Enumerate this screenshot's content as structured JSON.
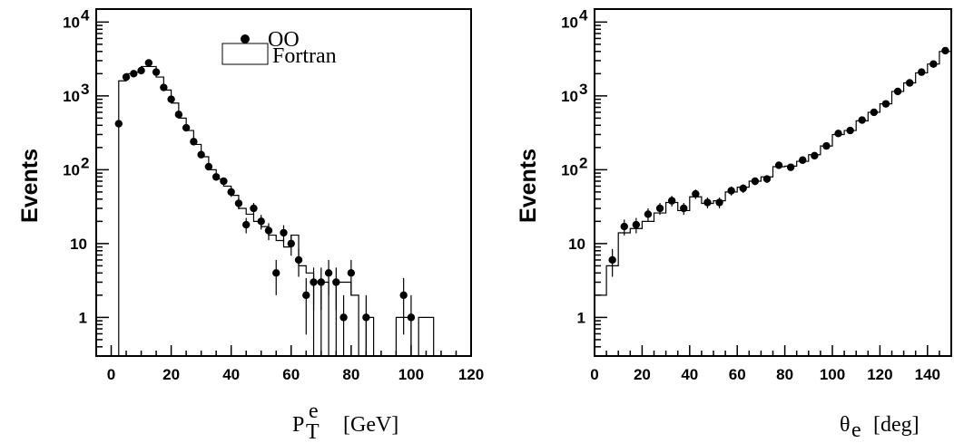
{
  "chart_data": [
    {
      "type": "scatter",
      "ylabel": "Events",
      "xlabel_main": "P",
      "xlabel_sup": "e",
      "xlabel_sub": "T",
      "xlabel_unit": "[GeV]",
      "x_range": [
        -5,
        120
      ],
      "y_range": [
        0.3,
        15000
      ],
      "y_scale": "log",
      "x_ticks": [
        0,
        20,
        40,
        60,
        80,
        100,
        120
      ],
      "y_ticks": [
        {
          "value": 1,
          "label": "1"
        },
        {
          "value": 10,
          "label": "10"
        },
        {
          "value": 100,
          "label": "10",
          "sup": "2"
        },
        {
          "value": 1000,
          "label": "10",
          "sup": "3"
        },
        {
          "value": 10000,
          "label": "10",
          "sup": "4"
        }
      ],
      "legend": {
        "position": "top-center",
        "points_label": "OO",
        "hist_label": "Fortran"
      },
      "series": [
        {
          "name": "OO",
          "kind": "points",
          "points": [
            {
              "x": 2.5,
              "y": 420
            },
            {
              "x": 5,
              "y": 1800
            },
            {
              "x": 7.5,
              "y": 2000
            },
            {
              "x": 10,
              "y": 2200
            },
            {
              "x": 12.5,
              "y": 2800
            },
            {
              "x": 15,
              "y": 2100
            },
            {
              "x": 17.5,
              "y": 1300
            },
            {
              "x": 20,
              "y": 900
            },
            {
              "x": 22.5,
              "y": 560
            },
            {
              "x": 25,
              "y": 370
            },
            {
              "x": 27.5,
              "y": 240
            },
            {
              "x": 30,
              "y": 160
            },
            {
              "x": 32.5,
              "y": 110
            },
            {
              "x": 35,
              "y": 80
            },
            {
              "x": 37.5,
              "y": 70
            },
            {
              "x": 40,
              "y": 50
            },
            {
              "x": 42.5,
              "y": 35
            },
            {
              "x": 45,
              "y": 18
            },
            {
              "x": 47.5,
              "y": 30
            },
            {
              "x": 50,
              "y": 20
            },
            {
              "x": 52.5,
              "y": 15
            },
            {
              "x": 55,
              "y": 4
            },
            {
              "x": 57.5,
              "y": 14
            },
            {
              "x": 60,
              "y": 10
            },
            {
              "x": 62.5,
              "y": 6
            },
            {
              "x": 65,
              "y": 2
            },
            {
              "x": 67.5,
              "y": 3
            },
            {
              "x": 70,
              "y": 3
            },
            {
              "x": 72.5,
              "y": 4
            },
            {
              "x": 75,
              "y": 3
            },
            {
              "x": 77.5,
              "y": 1
            },
            {
              "x": 80,
              "y": 4
            },
            {
              "x": 85,
              "y": 1
            },
            {
              "x": 97.5,
              "y": 2
            },
            {
              "x": 100,
              "y": 1
            }
          ]
        },
        {
          "name": "Fortran",
          "kind": "histogram",
          "bin_width": 2.5,
          "bins": [
            {
              "lo": 2.5,
              "y": 1600
            },
            {
              "lo": 5,
              "y": 2000
            },
            {
              "lo": 7.5,
              "y": 2100
            },
            {
              "lo": 10,
              "y": 2500
            },
            {
              "lo": 12.5,
              "y": 2500
            },
            {
              "lo": 15,
              "y": 1800
            },
            {
              "lo": 17.5,
              "y": 1200
            },
            {
              "lo": 20,
              "y": 800
            },
            {
              "lo": 22.5,
              "y": 500
            },
            {
              "lo": 25,
              "y": 340
            },
            {
              "lo": 27.5,
              "y": 220
            },
            {
              "lo": 30,
              "y": 150
            },
            {
              "lo": 32.5,
              "y": 100
            },
            {
              "lo": 35,
              "y": 75
            },
            {
              "lo": 37.5,
              "y": 60
            },
            {
              "lo": 40,
              "y": 45
            },
            {
              "lo": 42.5,
              "y": 30
            },
            {
              "lo": 45,
              "y": 25
            },
            {
              "lo": 47.5,
              "y": 20
            },
            {
              "lo": 50,
              "y": 17
            },
            {
              "lo": 52.5,
              "y": 13
            },
            {
              "lo": 55,
              "y": 11
            },
            {
              "lo": 57.5,
              "y": 9
            },
            {
              "lo": 60,
              "y": 13
            },
            {
              "lo": 62.5,
              "y": 5
            },
            {
              "lo": 65,
              "y": 4
            },
            {
              "lo": 67.5,
              "y": 0.3
            },
            {
              "lo": 70,
              "y": 3
            },
            {
              "lo": 72.5,
              "y": 0.3
            },
            {
              "lo": 75,
              "y": 3
            },
            {
              "lo": 77.5,
              "y": 3
            },
            {
              "lo": 80,
              "y": 2
            },
            {
              "lo": 82.5,
              "y": 0.3
            },
            {
              "lo": 85,
              "y": 1
            },
            {
              "lo": 87.5,
              "y": 0.3
            },
            {
              "lo": 95,
              "y": 1
            },
            {
              "lo": 97.5,
              "y": 1
            },
            {
              "lo": 100,
              "y": 0.3
            },
            {
              "lo": 102.5,
              "y": 1
            },
            {
              "lo": 105,
              "y": 1
            }
          ]
        }
      ]
    },
    {
      "type": "scatter",
      "ylabel": "Events",
      "xlabel_main": "θ",
      "xlabel_sub": "e",
      "xlabel_unit": "[deg]",
      "x_range": [
        0,
        150
      ],
      "y_range": [
        0.3,
        15000
      ],
      "y_scale": "log",
      "x_ticks": [
        0,
        20,
        40,
        60,
        80,
        100,
        120,
        140
      ],
      "y_ticks": [
        {
          "value": 1,
          "label": "1"
        },
        {
          "value": 10,
          "label": "10"
        },
        {
          "value": 100,
          "label": "10",
          "sup": "2"
        },
        {
          "value": 1000,
          "label": "10",
          "sup": "3"
        },
        {
          "value": 10000,
          "label": "10",
          "sup": "4"
        }
      ],
      "series": [
        {
          "name": "OO",
          "kind": "points",
          "points": [
            {
              "x": 7.5,
              "y": 6
            },
            {
              "x": 12.5,
              "y": 17
            },
            {
              "x": 17.5,
              "y": 18
            },
            {
              "x": 22.5,
              "y": 25
            },
            {
              "x": 27.5,
              "y": 30
            },
            {
              "x": 32.5,
              "y": 38
            },
            {
              "x": 37.5,
              "y": 30
            },
            {
              "x": 42.5,
              "y": 47
            },
            {
              "x": 47.5,
              "y": 36
            },
            {
              "x": 52.5,
              "y": 36
            },
            {
              "x": 57.5,
              "y": 52
            },
            {
              "x": 62.5,
              "y": 56
            },
            {
              "x": 67.5,
              "y": 70
            },
            {
              "x": 72.5,
              "y": 75
            },
            {
              "x": 77.5,
              "y": 115
            },
            {
              "x": 82.5,
              "y": 108
            },
            {
              "x": 87.5,
              "y": 135
            },
            {
              "x": 92.5,
              "y": 155
            },
            {
              "x": 97.5,
              "y": 210
            },
            {
              "x": 102.5,
              "y": 310
            },
            {
              "x": 107.5,
              "y": 340
            },
            {
              "x": 112.5,
              "y": 470
            },
            {
              "x": 117.5,
              "y": 600
            },
            {
              "x": 122.5,
              "y": 780
            },
            {
              "x": 127.5,
              "y": 1150
            },
            {
              "x": 132.5,
              "y": 1500
            },
            {
              "x": 137.5,
              "y": 2100
            },
            {
              "x": 142.5,
              "y": 2700
            },
            {
              "x": 147.5,
              "y": 4100
            }
          ]
        },
        {
          "name": "Fortran",
          "kind": "histogram",
          "bin_width": 5,
          "bins": [
            {
              "lo": 0,
              "y": 2
            },
            {
              "lo": 5,
              "y": 5
            },
            {
              "lo": 10,
              "y": 14
            },
            {
              "lo": 15,
              "y": 16
            },
            {
              "lo": 20,
              "y": 20
            },
            {
              "lo": 25,
              "y": 26
            },
            {
              "lo": 30,
              "y": 36
            },
            {
              "lo": 35,
              "y": 28
            },
            {
              "lo": 40,
              "y": 43
            },
            {
              "lo": 45,
              "y": 35
            },
            {
              "lo": 50,
              "y": 38
            },
            {
              "lo": 55,
              "y": 50
            },
            {
              "lo": 60,
              "y": 58
            },
            {
              "lo": 65,
              "y": 70
            },
            {
              "lo": 70,
              "y": 80
            },
            {
              "lo": 75,
              "y": 110
            },
            {
              "lo": 80,
              "y": 112
            },
            {
              "lo": 85,
              "y": 130
            },
            {
              "lo": 90,
              "y": 160
            },
            {
              "lo": 95,
              "y": 210
            },
            {
              "lo": 100,
              "y": 300
            },
            {
              "lo": 105,
              "y": 340
            },
            {
              "lo": 110,
              "y": 460
            },
            {
              "lo": 115,
              "y": 600
            },
            {
              "lo": 120,
              "y": 780
            },
            {
              "lo": 125,
              "y": 1150
            },
            {
              "lo": 130,
              "y": 1500
            },
            {
              "lo": 135,
              "y": 2050
            },
            {
              "lo": 140,
              "y": 2700
            },
            {
              "lo": 145,
              "y": 4000
            }
          ]
        }
      ]
    }
  ]
}
